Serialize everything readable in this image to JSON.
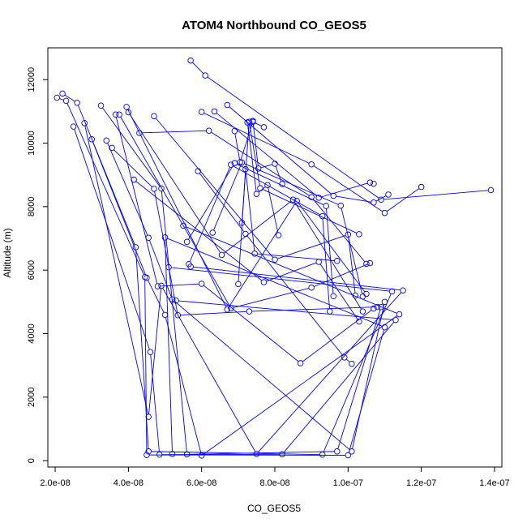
{
  "chart_data": {
    "type": "scatter",
    "title": "ATOM4 Northbound CO_GEOS5",
    "xlabel": "CO_GEOS5",
    "ylabel": "Altitude (m)",
    "xlim": [
      1.8e-08,
      1.42e-07
    ],
    "ylim": [
      -200,
      13000
    ],
    "x_ticks": [
      2e-08,
      4e-08,
      6e-08,
      8e-08,
      1e-07,
      1.2e-07,
      1.4e-07
    ],
    "x_tick_labels": [
      "2.0e-08",
      "4.0e-08",
      "6.0e-08",
      "8.0e-08",
      "1.0e-07",
      "1.2e-07",
      "1.4e-07"
    ],
    "y_ticks": [
      0,
      2000,
      4000,
      6000,
      8000,
      10000,
      12000
    ],
    "y_tick_labels": [
      "0",
      "2000",
      "4000",
      "6000",
      "8000",
      "10000",
      "12000"
    ],
    "style": {
      "color": "#0000ff",
      "marker": "open-circle",
      "connected": true
    },
    "series": [
      {
        "x": [
          2.05e-08,
          2.3e-08,
          4.45e-08,
          4.5e-08,
          1e-07,
          1.1e-07,
          5e-08,
          5.2e-08
        ],
        "y": [
          11430,
          11330,
          5780,
          180,
          170,
          4200,
          7030,
          210
        ]
      },
      {
        "x": [
          2.2e-08,
          2.6e-08,
          4.2e-08,
          4.55e-08,
          9.3e-08,
          1.12e-07,
          5.1e-08
        ],
        "y": [
          11560,
          11270,
          6720,
          290,
          190,
          5330,
          6090
        ]
      },
      {
        "x": [
          2.5e-08,
          4.6e-08,
          4.85e-08,
          8.2e-08,
          1.13e-07,
          5.3e-08
        ],
        "y": [
          10520,
          3420,
          190,
          200,
          4430,
          5040
        ]
      },
      {
        "x": [
          2.8e-08,
          4.55e-08,
          4.9e-08,
          7.5e-08,
          1.15e-07,
          5.7e-08
        ],
        "y": [
          10630,
          1380,
          5510,
          210,
          5360,
          6110
        ]
      },
      {
        "x": [
          3e-08,
          4.5e-08,
          5e-08,
          6e-08,
          1.14e-07,
          5.5e-08
        ],
        "y": [
          10120,
          5760,
          4590,
          160,
          4610,
          7400
        ]
      },
      {
        "x": [
          3.25e-08,
          4.9e-08,
          5.6e-08,
          9.7e-08,
          1.09e-07
        ],
        "y": [
          11180,
          8570,
          200,
          290,
          4840
        ]
      },
      {
        "x": [
          3.4e-08,
          4.55e-08,
          5.2e-08,
          1.01e-07,
          1.1e-07
        ],
        "y": [
          10080,
          7020,
          5080,
          290,
          5000
        ]
      },
      {
        "x": [
          3.55e-08,
          4.7e-08,
          5.35e-08,
          7.3e-08,
          1.08e-07
        ],
        "y": [
          9850,
          8560,
          4580,
          4700,
          4840
        ]
      },
      {
        "x": [
          3.65e-08,
          4.8e-08,
          6e-08,
          8.7e-08,
          1.07e-07
        ],
        "y": [
          10900,
          5490,
          5570,
          3070,
          4790
        ]
      },
      {
        "x": [
          3.75e-08,
          6.8e-08,
          9e-08,
          1.06e-07
        ],
        "y": [
          10900,
          4800,
          5450,
          6220
        ]
      },
      {
        "x": [
          3.95e-08,
          6.7e-08,
          8.6e-08,
          1.05e-07
        ],
        "y": [
          11140,
          4760,
          8180,
          5250
        ]
      },
      {
        "x": [
          4e-08,
          6.55e-08,
          8.5e-08,
          1.04e-07
        ],
        "y": [
          10970,
          6480,
          8220,
          4700
        ]
      },
      {
        "x": [
          4.3e-08,
          6.2e-08,
          9e-08,
          1.05e-07
        ],
        "y": [
          10320,
          10390,
          8300,
          6200
        ]
      },
      {
        "x": [
          4.15e-08,
          7.7e-08,
          9.2e-08,
          1.03e-07
        ],
        "y": [
          8850,
          5620,
          6260,
          4380
        ]
      },
      {
        "x": [
          4.7e-08,
          8e-08,
          1e-07,
          1.02e-07
        ],
        "y": [
          10850,
          6330,
          7120,
          5200
        ]
      },
      {
        "x": [
          5.7e-08,
          6.1e-08,
          1.09e-07,
          1.39e-07
        ],
        "y": [
          12600,
          12130,
          8220,
          8520
        ]
      },
      {
        "x": [
          6e-08,
          9e-08,
          1.1e-07,
          1.2e-07
        ],
        "y": [
          10980,
          9330,
          7800,
          8620
        ]
      },
      {
        "x": [
          6.35e-08,
          9.2e-08,
          1.06e-07,
          1.07e-07
        ],
        "y": [
          11000,
          8280,
          8760,
          8720
        ]
      },
      {
        "x": [
          6.7e-08,
          9.6e-08,
          1.07e-07,
          1.11e-07
        ],
        "y": [
          11200,
          8340,
          8130,
          8380
        ]
      },
      {
        "x": [
          6.9e-08,
          7.05e-08,
          7.4e-08,
          7.7e-08
        ],
        "y": [
          10380,
          9400,
          10670,
          10500
        ]
      },
      {
        "x": [
          5.9e-08,
          7.2e-08,
          9.9e-08,
          1.01e-07
        ],
        "y": [
          9120,
          7140,
          3250,
          3050
        ]
      },
      {
        "x": [
          6.3e-08,
          7.1e-08,
          9.8e-08,
          1.04e-07
        ],
        "y": [
          7180,
          9390,
          8030,
          5170
        ]
      },
      {
        "x": [
          5.6e-08,
          6.9e-08,
          9.4e-08,
          9.6e-08
        ],
        "y": [
          6890,
          9370,
          8020,
          5180
        ]
      },
      {
        "x": [
          5.65e-08,
          6.8e-08,
          9.3e-08,
          9.5e-08
        ],
        "y": [
          6190,
          9320,
          7700,
          4700
        ]
      },
      {
        "x": [
          7.4e-08,
          7.55e-08,
          8e-08,
          8.2e-08
        ],
        "y": [
          10700,
          9200,
          9350,
          8710
        ]
      },
      {
        "x": [
          7.25e-08,
          7.5e-08,
          7.8e-08,
          8.1e-08
        ],
        "y": [
          10650,
          8400,
          8680,
          7100
        ]
      },
      {
        "x": [
          7.1e-08,
          7.3e-08,
          7.6e-08,
          1.03e-07
        ],
        "y": [
          7490,
          10670,
          8580,
          7130
        ]
      },
      {
        "x": [
          7e-08,
          7.2e-08,
          7.45e-08,
          9.7e-08
        ],
        "y": [
          5560,
          9180,
          6520,
          6290
        ]
      }
    ]
  }
}
